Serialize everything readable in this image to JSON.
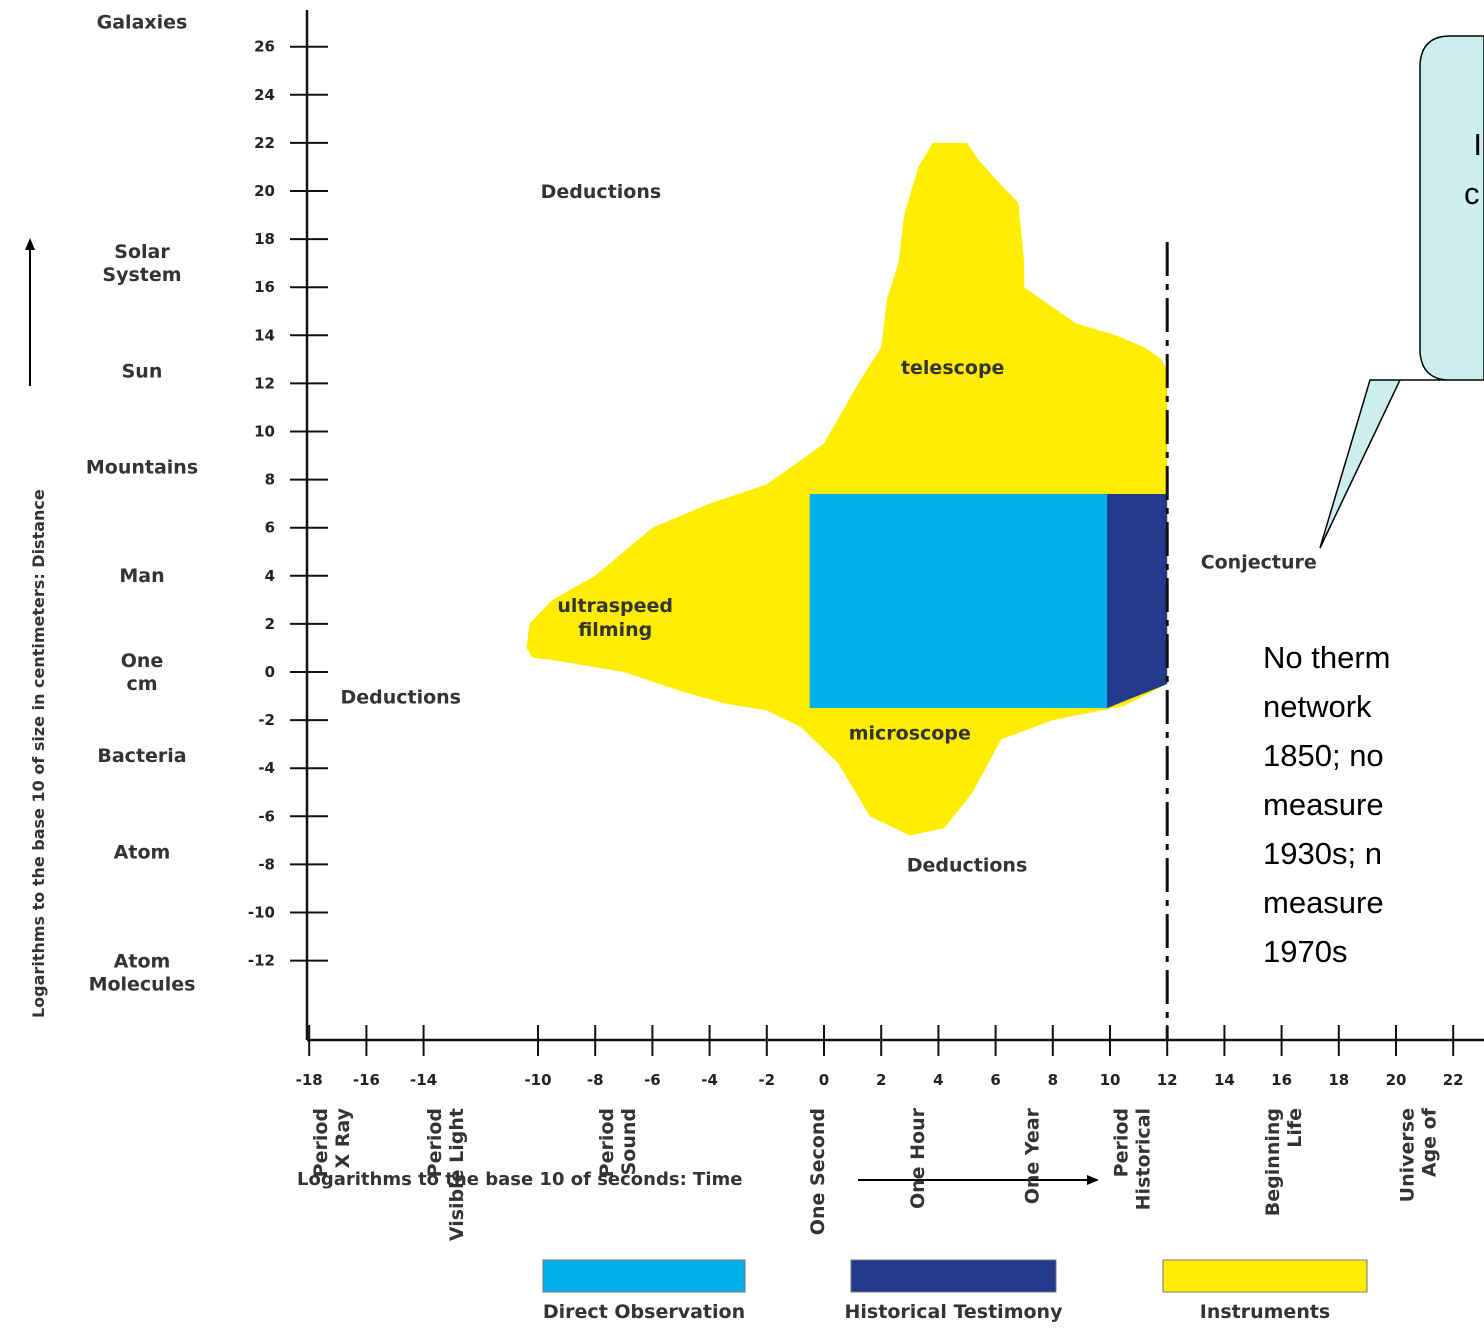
{
  "chart_data": {
    "type": "area",
    "ylabel": "Logarithms to the base 10 of size in centimeters: Distance",
    "xlabel": "Logarithms to the base 10 of seconds: Time",
    "x_ticks": [
      "-18",
      "-16",
      "-14",
      "-10",
      "-8",
      "-6",
      "-4",
      "-2",
      "0",
      "2",
      "4",
      "6",
      "8",
      "10",
      "12",
      "14",
      "16",
      "18",
      "20",
      "22"
    ],
    "y_ticks": [
      "26",
      "24",
      "22",
      "20",
      "18",
      "16",
      "14",
      "12",
      "10",
      "8",
      "6",
      "4",
      "2",
      "0",
      "-2",
      "-4",
      "-6",
      "-8",
      "-10",
      "-12"
    ],
    "y_categories": [
      {
        "label": "Galaxies",
        "y": 27
      },
      {
        "label": "Solar System",
        "y": 17
      },
      {
        "label": "Sun",
        "y": 12.5
      },
      {
        "label": "Mountains",
        "y": 8.5
      },
      {
        "label": "Man",
        "y": 4
      },
      {
        "label": "One cm",
        "y": 0
      },
      {
        "label": "Bacteria",
        "y": -3.5
      },
      {
        "label": "Atom",
        "y": -7.5
      },
      {
        "label": "Atom Molecules",
        "y": -12.5
      }
    ],
    "x_categories": [
      {
        "label": "X Ray Period",
        "x": -17
      },
      {
        "label": "Visible Light Period",
        "x": -13
      },
      {
        "label": "Sound Period",
        "x": -7
      },
      {
        "label": "One Second",
        "x": 0
      },
      {
        "label": "One Hour",
        "x": 3.5
      },
      {
        "label": "One Year",
        "x": 7.5
      },
      {
        "label": "Historical Period",
        "x": 11
      },
      {
        "label": "Life Beginning",
        "x": 16.3
      },
      {
        "label": "Age of Universe",
        "x": 21
      }
    ],
    "regions": [
      {
        "name": "Instruments",
        "color": "#FFED00",
        "outline": [
          [
            -10.4,
            1.0
          ],
          [
            -10.3,
            2.0
          ],
          [
            -9.5,
            3.0
          ],
          [
            -8.0,
            4.0
          ],
          [
            -6.0,
            6.0
          ],
          [
            -4.0,
            7.0
          ],
          [
            -2.0,
            7.8
          ],
          [
            0.0,
            9.5
          ],
          [
            1.2,
            12.0
          ],
          [
            2.0,
            13.5
          ],
          [
            2.2,
            15.5
          ],
          [
            2.6,
            17.0
          ],
          [
            2.8,
            19.0
          ],
          [
            3.3,
            21.0
          ],
          [
            3.8,
            22.0
          ],
          [
            5.0,
            22.0
          ],
          [
            5.4,
            21.3
          ],
          [
            6.0,
            20.5
          ],
          [
            6.8,
            19.5
          ],
          [
            7.0,
            17.0
          ],
          [
            7.0,
            16.0
          ],
          [
            8.8,
            14.5
          ],
          [
            10.2,
            14.0
          ],
          [
            11.2,
            13.5
          ],
          [
            11.8,
            13.0
          ],
          [
            12.0,
            12.5
          ],
          [
            12.0,
            -0.5
          ],
          [
            10.5,
            -1.4
          ],
          [
            8.0,
            -2.0
          ],
          [
            6.2,
            -2.8
          ],
          [
            5.2,
            -5.0
          ],
          [
            4.2,
            -6.5
          ],
          [
            3.0,
            -6.8
          ],
          [
            1.6,
            -6.0
          ],
          [
            0.5,
            -3.8
          ],
          [
            -0.8,
            -2.3
          ],
          [
            -2.0,
            -1.6
          ],
          [
            -3.5,
            -1.3
          ],
          [
            -5.0,
            -0.8
          ],
          [
            -7.0,
            0.0
          ],
          [
            -9.5,
            0.5
          ],
          [
            -10.2,
            0.6
          ]
        ]
      },
      {
        "name": "Direct Observation",
        "color": "#00B0EA",
        "rect": [
          -0.5,
          9.9,
          -1.5,
          7.4
        ]
      },
      {
        "name": "Historical Testimony",
        "color": "#233A8C",
        "outline": [
          [
            9.9,
            7.4
          ],
          [
            12.0,
            7.4
          ],
          [
            12.0,
            -0.5
          ],
          [
            9.9,
            -1.5
          ]
        ]
      }
    ],
    "historical_line_x": 12,
    "region_labels": [
      {
        "text": "Deductions",
        "x": -7.8,
        "y": 19.7
      },
      {
        "text": "Deductions",
        "x": -14.8,
        "y": -1.3
      },
      {
        "text": "Deductions",
        "x": 5.0,
        "y": -8.3
      },
      {
        "text": "telescope",
        "x": 4.5,
        "y": 12.4
      },
      {
        "text": "ultraspeed",
        "x": -7.3,
        "y": 2.5
      },
      {
        "text": "filming",
        "x": -7.3,
        "y": 1.5
      },
      {
        "text": "microscope",
        "x": 3.0,
        "y": -2.8
      },
      {
        "text": "Conjecture",
        "x": 15.2,
        "y": 4.3
      }
    ],
    "legend": [
      {
        "label": "Direct Observation",
        "color": "#00B0EA"
      },
      {
        "label": "Historical Testimony",
        "color": "#233A8C"
      },
      {
        "label": "Instruments",
        "color": "#FFED00"
      }
    ],
    "legend_position": "bottom"
  },
  "callout": {
    "lines": [
      "No therm",
      "network",
      "1850; no",
      "measure",
      "1930s; n",
      "measure",
      "1970s"
    ],
    "bubble_lines": [
      "I",
      "c"
    ],
    "bubble_fill": "#CCEEEE"
  }
}
